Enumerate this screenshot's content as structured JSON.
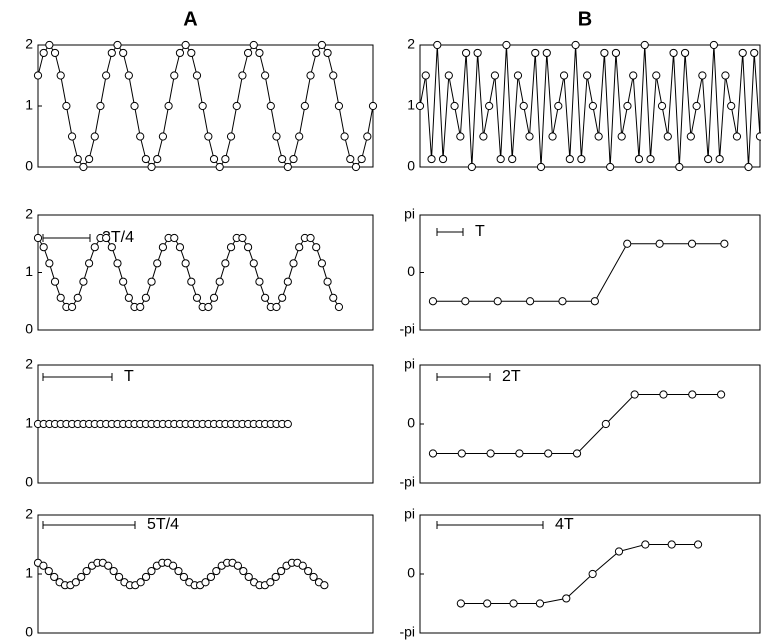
{
  "chart_data": [
    {
      "type": "line",
      "title": "A",
      "xlim": [
        0,
        59
      ],
      "ylim": [
        0,
        2
      ],
      "yticks": [
        0,
        1,
        2
      ],
      "values": [
        1.5,
        1.87,
        2,
        1.87,
        1.5,
        1,
        0.5,
        0.13,
        0,
        0.13,
        0.5,
        1,
        1.5,
        1.87,
        2,
        1.87,
        1.5,
        1,
        0.5,
        0.13,
        0,
        0.13,
        0.5,
        1,
        1.5,
        1.87,
        2,
        1.87,
        1.5,
        1,
        0.5,
        0.13,
        0,
        0.13,
        0.5,
        1,
        1.5,
        1.87,
        2,
        1.87,
        1.5,
        1,
        0.5,
        0.13,
        0,
        0.13,
        0.5,
        1,
        1.5,
        1.87,
        2,
        1.87,
        1.5,
        1,
        0.5,
        0.13,
        0,
        0.13,
        0.5,
        1
      ]
    },
    {
      "type": "line",
      "title": "B",
      "xlim": [
        0,
        59
      ],
      "ylim": [
        0,
        2
      ],
      "yticks": [
        0,
        1,
        2
      ],
      "values": [
        1,
        1.5,
        0.13,
        2,
        0.13,
        1.5,
        1,
        0.5,
        1.87,
        0,
        1.87,
        0.5,
        1,
        1.5,
        0.13,
        2,
        0.13,
        1.5,
        1,
        0.5,
        1.87,
        0,
        1.87,
        0.5,
        1,
        1.5,
        0.13,
        2,
        0.13,
        1.5,
        1,
        0.5,
        1.87,
        0,
        1.87,
        0.5,
        1,
        1.5,
        0.13,
        2,
        0.13,
        1.5,
        1,
        0.5,
        1.87,
        0,
        1.87,
        0.5,
        1,
        1.5,
        0.13,
        2,
        0.13,
        1.5,
        1,
        0.5,
        1.87,
        0,
        1.87,
        0.5
      ]
    },
    {
      "type": "line",
      "annotation": "3T/4",
      "xlim": [
        0,
        59
      ],
      "ylim": [
        0,
        2
      ],
      "yticks": [
        0,
        1,
        2
      ],
      "values": [
        1.6,
        1.44,
        1.16,
        0.84,
        0.56,
        0.4,
        0.4,
        0.56,
        0.84,
        1.16,
        1.44,
        1.6,
        1.6,
        1.44,
        1.16,
        0.84,
        0.56,
        0.4,
        0.4,
        0.56,
        0.84,
        1.16,
        1.44,
        1.6,
        1.6,
        1.44,
        1.16,
        0.84,
        0.56,
        0.4,
        0.4,
        0.56,
        0.84,
        1.16,
        1.44,
        1.6,
        1.6,
        1.44,
        1.16,
        0.84,
        0.56,
        0.4,
        0.4,
        0.56,
        0.84,
        1.16,
        1.44,
        1.6,
        1.6,
        1.44,
        1.16,
        0.84,
        0.56,
        0.4
      ]
    },
    {
      "type": "line",
      "annotation": "T",
      "xlim": [
        -0.4,
        10.1
      ],
      "ylim": [
        -3.14159,
        3.14159
      ],
      "yticks": [
        {
          "value": -3.14159,
          "label": "-pi"
        },
        0,
        {
          "value": 3.14159,
          "label": "pi"
        }
      ],
      "values": [
        -1.57,
        -1.57,
        -1.57,
        -1.57,
        -1.57,
        -1.57,
        1.57,
        1.57,
        1.57,
        1.57
      ]
    },
    {
      "type": "line",
      "annotation": "T",
      "xlim": [
        0,
        59
      ],
      "ylim": [
        0,
        2
      ],
      "yticks": [
        0,
        1,
        2
      ],
      "values": [
        1,
        1,
        1,
        1,
        1,
        1,
        1,
        1,
        1,
        1,
        1,
        1,
        1,
        1,
        1,
        1,
        1,
        1,
        1,
        1,
        1,
        1,
        1,
        1,
        1,
        1,
        1,
        1,
        1,
        1,
        1,
        1,
        1,
        1,
        1,
        1,
        1,
        1,
        1,
        1,
        1,
        1,
        1,
        1,
        1
      ]
    },
    {
      "type": "line",
      "annotation": "2T",
      "xlim": [
        -0.45,
        11.35
      ],
      "ylim": [
        -3.14159,
        3.14159
      ],
      "yticks": [
        {
          "value": -3.14159,
          "label": "-pi"
        },
        0,
        {
          "value": 3.14159,
          "label": "pi"
        }
      ],
      "values": [
        -1.57,
        -1.57,
        -1.57,
        -1.57,
        -1.57,
        -1.57,
        0,
        1.57,
        1.57,
        1.57,
        1.57
      ]
    },
    {
      "type": "line",
      "annotation": "5T/4",
      "xlim": [
        0,
        62
      ],
      "ylim": [
        0,
        2
      ],
      "yticks": [
        0,
        1,
        2
      ],
      "values": [
        1.19,
        1.14,
        1.05,
        0.95,
        0.86,
        0.81,
        0.81,
        0.86,
        0.95,
        1.05,
        1.14,
        1.19,
        1.19,
        1.14,
        1.05,
        0.95,
        0.86,
        0.81,
        0.81,
        0.86,
        0.95,
        1.05,
        1.14,
        1.19,
        1.19,
        1.14,
        1.05,
        0.95,
        0.86,
        0.81,
        0.81,
        0.86,
        0.95,
        1.05,
        1.14,
        1.19,
        1.19,
        1.14,
        1.05,
        0.95,
        0.86,
        0.81,
        0.81,
        0.86,
        0.95,
        1.05,
        1.14,
        1.19,
        1.19,
        1.14,
        1.05,
        0.95,
        0.86,
        0.81
      ]
    },
    {
      "type": "line",
      "annotation": "4T",
      "xlim": [
        -1.55,
        11.35
      ],
      "ylim": [
        -3.14159,
        3.14159
      ],
      "yticks": [
        {
          "value": -3.14159,
          "label": "-pi"
        },
        0,
        {
          "value": 3.14159,
          "label": "pi"
        }
      ],
      "values": [
        -1.57,
        -1.57,
        -1.57,
        -1.57,
        -1.3,
        0,
        1.2,
        1.57,
        1.57,
        1.57
      ]
    }
  ]
}
